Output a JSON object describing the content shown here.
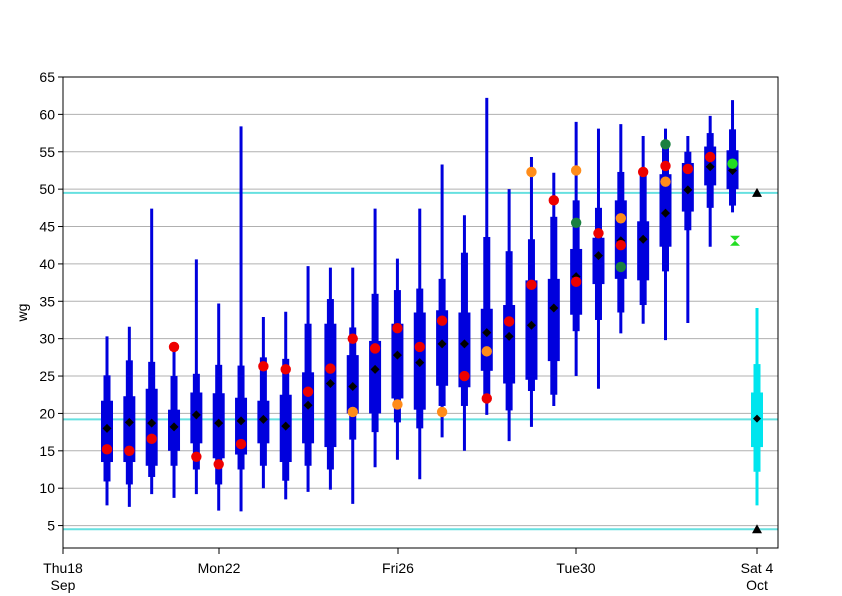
{
  "chart_data": {
    "type": "box",
    "title": "",
    "xlabel": "",
    "ylabel": "wg",
    "ylim": [
      2,
      65
    ],
    "yticks": [
      5,
      10,
      15,
      20,
      25,
      30,
      35,
      40,
      45,
      50,
      55,
      60,
      65
    ],
    "grid": true,
    "x_ticks": [
      {
        "x": 0,
        "label": [
          "Thu18",
          "Sep"
        ]
      },
      {
        "x": 4,
        "label": [
          "Mon22",
          ""
        ]
      },
      {
        "x": 8,
        "label": [
          "Fri26",
          ""
        ]
      },
      {
        "x": 12,
        "label": [
          "Tue30",
          ""
        ]
      },
      {
        "x": 16,
        "label": [
          "Sat 4",
          "Oct"
        ]
      }
    ],
    "reference_lines": [
      49.5,
      19.2,
      4.5
    ],
    "colors": {
      "box": "#0000dd",
      "median": "#000000",
      "observed": "#ee0000",
      "orange": "#ff8c1a",
      "darkgreen": "#1a8040",
      "lime": "#22dd22",
      "reference": "#66e0e0",
      "climate": "#00e5ee"
    },
    "boxes": [
      {
        "x": 0.45,
        "wmin": 7.7,
        "p10": 10.9,
        "p25": 13.5,
        "p75": 21.7,
        "p90": 25.1,
        "wmax": 30.3,
        "median": 18.0
      },
      {
        "x": 0.7,
        "wmin": 7.5,
        "p10": 10.5,
        "p25": 13.5,
        "p75": 22.3,
        "p90": 27.1,
        "wmax": 31.6,
        "median": 18.8
      },
      {
        "x": 0.95,
        "wmin": 9.2,
        "p10": 11.5,
        "p25": 13.0,
        "p75": 23.3,
        "p90": 26.9,
        "wmax": 47.4,
        "median": 18.7
      },
      {
        "x": 1.2,
        "wmin": 8.7,
        "p10": 13.0,
        "p25": 15.0,
        "p75": 20.5,
        "p90": 25.0,
        "wmax": 29.0,
        "median": 18.2
      },
      {
        "x": 1.45,
        "wmin": 9.2,
        "p10": 12.5,
        "p25": 16.0,
        "p75": 22.8,
        "p90": 25.3,
        "wmax": 40.6,
        "median": 19.8
      },
      {
        "x": 1.7,
        "wmin": 7.0,
        "p10": 10.5,
        "p25": 14.0,
        "p75": 22.7,
        "p90": 26.5,
        "wmax": 34.7,
        "median": 18.7
      },
      {
        "x": 1.95,
        "wmin": 6.9,
        "p10": 12.5,
        "p25": 14.5,
        "p75": 22.1,
        "p90": 26.4,
        "wmax": 58.4,
        "median": 19.0
      },
      {
        "x": 2.2,
        "wmin": 10.0,
        "p10": 13.0,
        "p25": 16.0,
        "p75": 21.7,
        "p90": 27.5,
        "wmax": 32.9,
        "median": 19.2
      },
      {
        "x": 2.45,
        "wmin": 8.5,
        "p10": 11.0,
        "p25": 13.5,
        "p75": 22.5,
        "p90": 27.3,
        "wmax": 33.6,
        "median": 18.3
      },
      {
        "x": 2.7,
        "wmin": 9.5,
        "p10": 13.0,
        "p25": 16.0,
        "p75": 25.5,
        "p90": 32.0,
        "wmax": 39.7,
        "median": 21.1
      },
      {
        "x": 2.95,
        "wmin": 9.8,
        "p10": 12.5,
        "p25": 15.5,
        "p75": 32.0,
        "p90": 35.3,
        "wmax": 39.5,
        "median": 24.0
      },
      {
        "x": 3.2,
        "wmin": 7.9,
        "p10": 16.5,
        "p25": 20.0,
        "p75": 27.8,
        "p90": 31.5,
        "wmax": 39.5,
        "median": 23.6
      },
      {
        "x": 3.45,
        "wmin": 12.8,
        "p10": 17.5,
        "p25": 20.0,
        "p75": 29.7,
        "p90": 36.0,
        "wmax": 47.4,
        "median": 25.9
      },
      {
        "x": 3.7,
        "wmin": 13.8,
        "p10": 18.8,
        "p25": 22.0,
        "p75": 32.0,
        "p90": 36.5,
        "wmax": 40.7,
        "median": 27.8
      },
      {
        "x": 3.95,
        "wmin": 11.2,
        "p10": 18.0,
        "p25": 20.5,
        "p75": 33.5,
        "p90": 36.7,
        "wmax": 47.4,
        "median": 26.8
      },
      {
        "x": 4.2,
        "wmin": 16.8,
        "p10": 21.0,
        "p25": 23.7,
        "p75": 33.8,
        "p90": 38.0,
        "wmax": 53.3,
        "median": 29.3
      },
      {
        "x": 4.45,
        "wmin": 15.0,
        "p10": 21.0,
        "p25": 23.5,
        "p75": 33.5,
        "p90": 41.5,
        "wmax": 46.5,
        "median": 29.3
      },
      {
        "x": 4.7,
        "wmin": 19.8,
        "p10": 22.5,
        "p25": 25.7,
        "p75": 34.0,
        "p90": 43.6,
        "wmax": 62.2,
        "median": 30.8
      },
      {
        "x": 4.95,
        "wmin": 16.3,
        "p10": 20.4,
        "p25": 24.0,
        "p75": 34.5,
        "p90": 41.7,
        "wmax": 50.0,
        "median": 30.3
      },
      {
        "x": 5.2,
        "wmin": 18.2,
        "p10": 23.0,
        "p25": 24.5,
        "p75": 37.8,
        "p90": 43.3,
        "wmax": 54.3,
        "median": 31.8
      },
      {
        "x": 5.45,
        "wmin": 21.0,
        "p10": 22.5,
        "p25": 27.0,
        "p75": 38.0,
        "p90": 46.3,
        "wmax": 52.2,
        "median": 34.1
      },
      {
        "x": 5.7,
        "wmin": 25.0,
        "p10": 31.0,
        "p25": 33.2,
        "p75": 42.0,
        "p90": 48.5,
        "wmax": 59.0,
        "median": 38.3
      },
      {
        "x": 5.95,
        "wmin": 23.3,
        "p10": 32.5,
        "p25": 37.3,
        "p75": 43.5,
        "p90": 47.5,
        "wmax": 58.1,
        "median": 41.1
      },
      {
        "x": 6.2,
        "wmin": 30.7,
        "p10": 33.5,
        "p25": 38.0,
        "p75": 48.5,
        "p90": 52.3,
        "wmax": 58.7,
        "median": 43.1
      },
      {
        "x": 6.45,
        "wmin": 32.0,
        "p10": 34.5,
        "p25": 37.8,
        "p75": 45.7,
        "p90": 52.2,
        "wmax": 57.1,
        "median": 43.3
      },
      {
        "x": 6.7,
        "wmin": 29.8,
        "p10": 39.0,
        "p25": 42.3,
        "p75": 52.0,
        "p90": 55.8,
        "wmax": 58.1,
        "median": 46.8
      },
      {
        "x": 6.95,
        "wmin": 32.1,
        "p10": 44.5,
        "p25": 47.0,
        "p75": 53.5,
        "p90": 55.0,
        "wmax": 57.1,
        "median": 49.9
      },
      {
        "x": 7.2,
        "wmin": 42.3,
        "p10": 47.5,
        "p25": 50.5,
        "p75": 55.7,
        "p90": 57.5,
        "wmax": 59.8,
        "median": 53.0
      },
      {
        "x": 7.45,
        "wmin": 46.9,
        "p10": 47.8,
        "p25": 50.0,
        "p75": 55.2,
        "p90": 58.0,
        "wmax": 61.9,
        "median": 52.5
      }
    ],
    "climate_box": {
      "x": 16,
      "wmin": 7.7,
      "p10": 12.2,
      "p25": 15.5,
      "p75": 22.8,
      "p90": 26.6,
      "wmax": 34.1,
      "median": 19.3
    },
    "series_red": [
      {
        "x": 0.45,
        "y": 15.2
      },
      {
        "x": 0.7,
        "y": 15.0
      },
      {
        "x": 0.95,
        "y": 16.6
      },
      {
        "x": 1.2,
        "y": 28.9
      },
      {
        "x": 1.45,
        "y": 14.2
      },
      {
        "x": 1.7,
        "y": 13.2
      },
      {
        "x": 1.95,
        "y": 15.9
      },
      {
        "x": 2.2,
        "y": 26.3
      },
      {
        "x": 2.45,
        "y": 25.9
      },
      {
        "x": 2.7,
        "y": 22.9
      },
      {
        "x": 2.95,
        "y": 26.0
      },
      {
        "x": 3.2,
        "y": 30.0
      },
      {
        "x": 3.45,
        "y": 28.7
      },
      {
        "x": 3.7,
        "y": 31.4
      },
      {
        "x": 3.95,
        "y": 28.9
      },
      {
        "x": 4.2,
        "y": 32.4
      },
      {
        "x": 4.45,
        "y": 25.0
      },
      {
        "x": 4.7,
        "y": 22.0
      },
      {
        "x": 4.95,
        "y": 32.3
      },
      {
        "x": 5.2,
        "y": 37.2
      },
      {
        "x": 5.45,
        "y": 48.5
      },
      {
        "x": 5.7,
        "y": 37.6
      },
      {
        "x": 5.95,
        "y": 44.1
      },
      {
        "x": 6.2,
        "y": 42.5
      },
      {
        "x": 6.45,
        "y": 52.3
      },
      {
        "x": 6.7,
        "y": 53.1
      },
      {
        "x": 6.95,
        "y": 52.7
      },
      {
        "x": 7.2,
        "y": 54.3
      }
    ],
    "series_orange": [
      {
        "x": 3.2,
        "y": 20.2
      },
      {
        "x": 3.7,
        "y": 21.2
      },
      {
        "x": 4.2,
        "y": 20.2
      },
      {
        "x": 4.7,
        "y": 28.3
      },
      {
        "x": 5.2,
        "y": 52.3
      },
      {
        "x": 5.7,
        "y": 52.5
      },
      {
        "x": 6.2,
        "y": 46.1
      },
      {
        "x": 6.7,
        "y": 51.0
      }
    ],
    "series_darkgreen": [
      {
        "x": 5.7,
        "y": 45.5
      },
      {
        "x": 6.2,
        "y": 39.6
      },
      {
        "x": 6.7,
        "y": 56.0
      }
    ],
    "series_lime": [
      {
        "x": 7.45,
        "y": 53.4
      }
    ],
    "triangles_up": [
      {
        "x": 7.45,
        "y": 49.5
      },
      {
        "x": 7.45,
        "y": 4.5
      }
    ],
    "hourglass": [
      {
        "x": 7.45,
        "y": 43.1
      }
    ]
  }
}
